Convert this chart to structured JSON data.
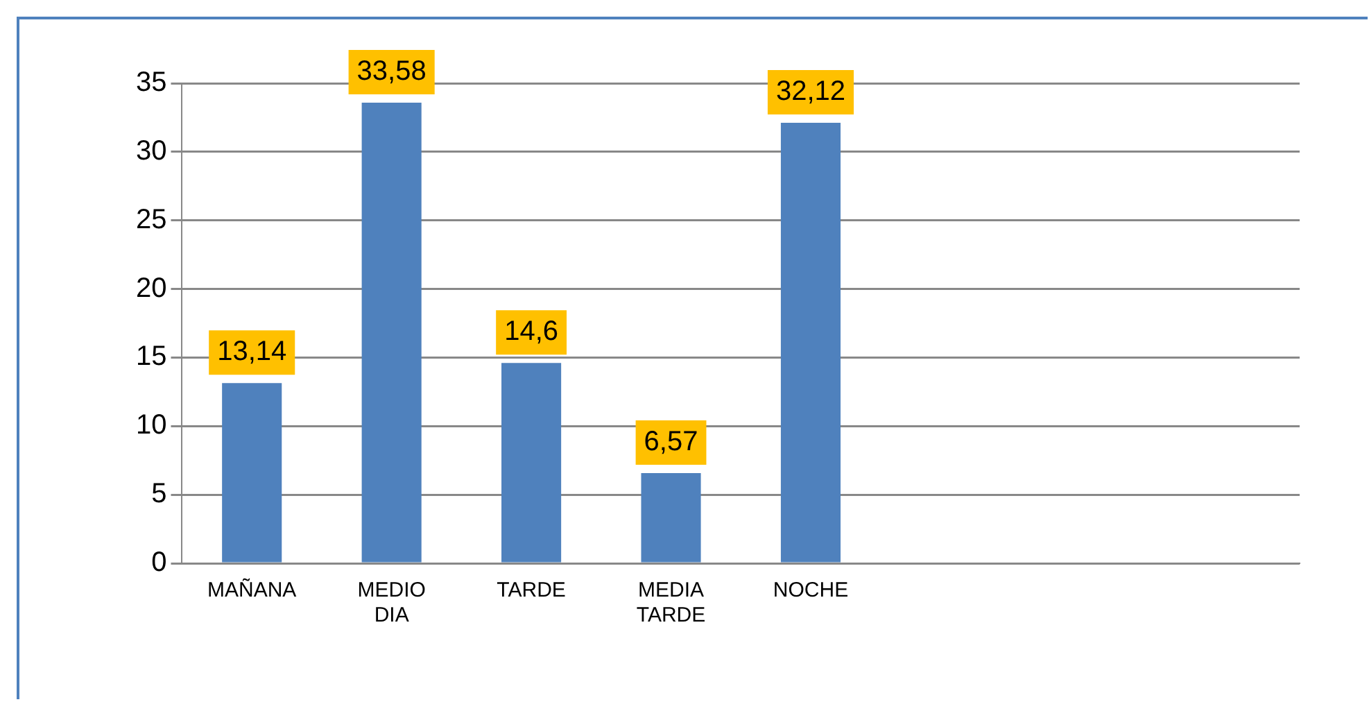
{
  "chart_data": {
    "type": "bar",
    "categories": [
      "MAÑANA",
      "MEDIO DIA",
      "TARDE",
      "MEDIA TARDE",
      "NOCHE",
      null,
      null,
      null
    ],
    "values": [
      13.14,
      33.58,
      14.6,
      6.57,
      32.12,
      null,
      null,
      null
    ],
    "value_labels": [
      "13,14",
      "33,58",
      "14,6",
      "6,57",
      "32,12",
      null,
      null,
      null
    ],
    "color": "#4f81bd",
    "ylim": [
      0,
      35
    ],
    "yticks": [
      0,
      5,
      10,
      15,
      20,
      25,
      30,
      35
    ],
    "grid": "y",
    "legend": false
  }
}
